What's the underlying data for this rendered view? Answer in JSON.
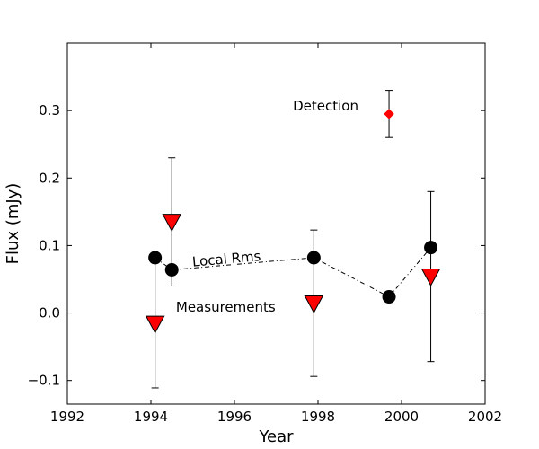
{
  "chart_data": {
    "type": "scatter",
    "xlabel": "Year",
    "ylabel": "Flux (mJy)",
    "xlim": [
      1992,
      2002
    ],
    "ylim": [
      -0.135,
      0.4
    ],
    "x_ticks": [
      1992,
      1994,
      1996,
      1998,
      2000,
      2002
    ],
    "x_tick_labels": [
      "1992",
      "1994",
      "1996",
      "1998",
      "2000",
      "2002"
    ],
    "y_ticks": [
      -0.1,
      0.0,
      0.1,
      0.2,
      0.3
    ],
    "y_tick_labels": [
      "−0.1",
      "0.0",
      "0.1",
      "0.2",
      "0.3"
    ],
    "grid": false,
    "series": [
      {
        "marker": "circle",
        "color": "#000000",
        "connected": "dash-dot",
        "points": [
          {
            "x": 1994.1,
            "y": 0.082
          },
          {
            "x": 1994.5,
            "y": 0.064
          },
          {
            "x": 1997.9,
            "y": 0.082
          },
          {
            "x": 1999.7,
            "y": 0.024
          },
          {
            "x": 2000.7,
            "y": 0.097
          }
        ]
      },
      {
        "marker": "triangle-down",
        "color": "#ff0000",
        "connected": "none",
        "points": [
          {
            "x": 1994.1,
            "y": -0.016,
            "err_low": 0.095,
            "err_high": 0.098
          },
          {
            "x": 1994.5,
            "y": 0.135,
            "err_low": 0.095,
            "err_high": 0.095
          },
          {
            "x": 1997.9,
            "y": 0.014,
            "err_low": 0.108,
            "err_high": 0.109
          },
          {
            "x": 2000.7,
            "y": 0.054,
            "err_low": 0.126,
            "err_high": 0.126
          }
        ]
      },
      {
        "marker": "diamond",
        "color": "#ff0000",
        "connected": "none",
        "points": [
          {
            "x": 1999.7,
            "y": 0.295,
            "err_low": 0.035,
            "err_high": 0.035
          }
        ]
      }
    ],
    "annotations": [
      {
        "text": "Detection",
        "x": 1997.4,
        "y": 0.3
      },
      {
        "text": "Local Rms",
        "x": 1995.0,
        "y": 0.069,
        "rotation": -5
      },
      {
        "text": "Measurements",
        "x": 1994.6,
        "y": 0.002
      }
    ]
  }
}
